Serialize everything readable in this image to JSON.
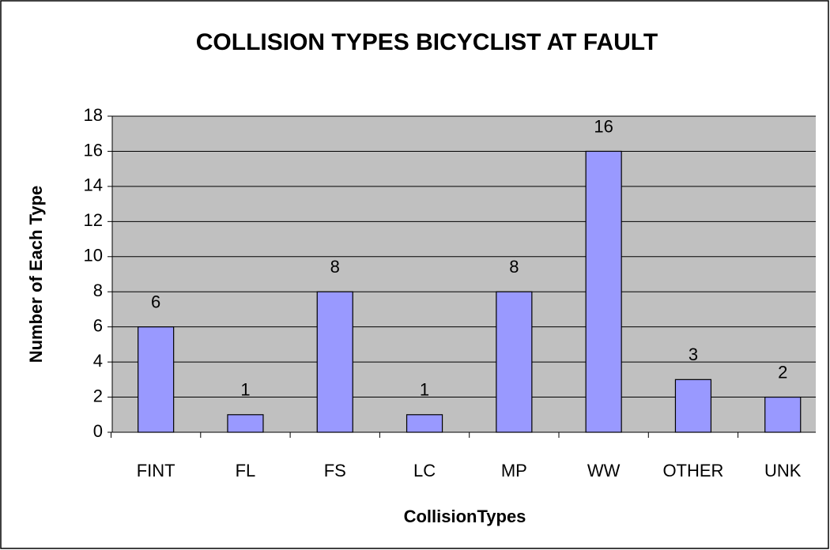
{
  "chart_data": {
    "type": "bar",
    "title": "COLLISION TYPES BICYCLIST AT FAULT",
    "x_label": "CollisionTypes",
    "y_label": "Number of Each Type",
    "categories": [
      "FINT",
      "FL",
      "FS",
      "LC",
      "MP",
      "WW",
      "OTHER",
      "UNK"
    ],
    "values": [
      6,
      1,
      8,
      1,
      8,
      16,
      3,
      2
    ],
    "color": "#9999ff",
    "ylim": [
      0,
      18
    ],
    "yticks": [
      0,
      2,
      4,
      6,
      8,
      10,
      12,
      14,
      16,
      18
    ],
    "grid": true
  }
}
